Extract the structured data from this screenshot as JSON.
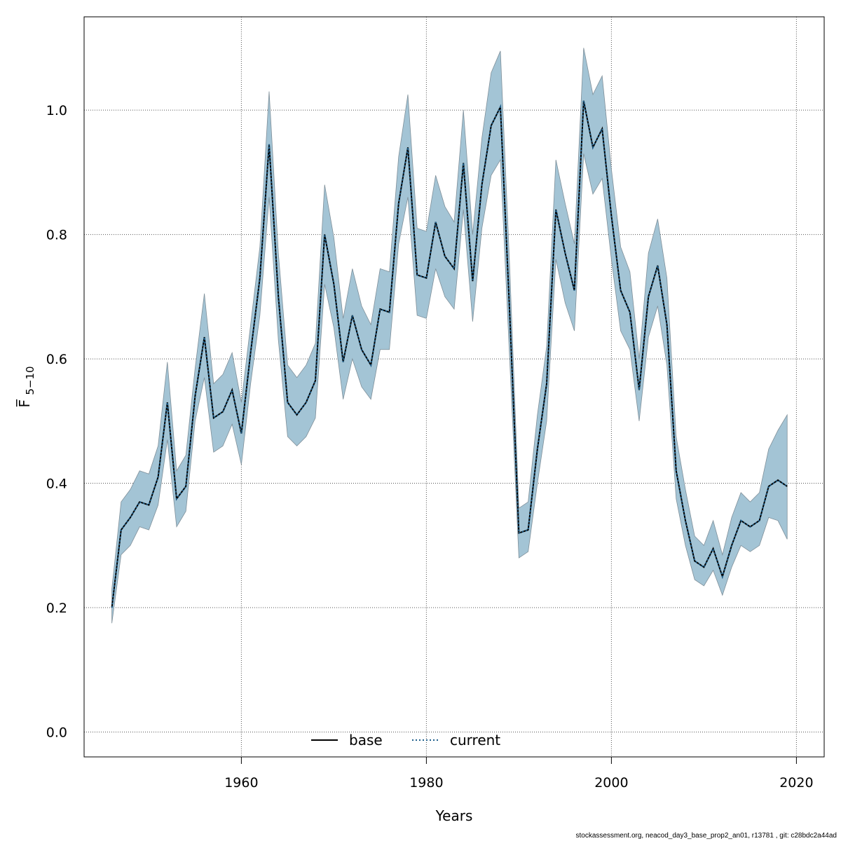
{
  "chart_data": {
    "type": "line",
    "xlabel": "Years",
    "ylabel": "F̅",
    "ylabel_subscript": "5−10",
    "xlim": [
      1943,
      2023
    ],
    "ylim": [
      -0.04,
      1.15
    ],
    "x_ticks": [
      1960,
      1980,
      2000,
      2020
    ],
    "y_ticks": [
      0.0,
      0.2,
      0.4,
      0.6,
      0.8,
      1.0
    ],
    "x_tick_labels": [
      "1960",
      "1980",
      "2000",
      "2020"
    ],
    "y_tick_labels": [
      "0.0",
      "0.2",
      "0.4",
      "0.6",
      "0.8",
      "1.0"
    ],
    "grid": true,
    "legend_position": "bottom-center",
    "band_color": "#a3c4d5",
    "band_edge_color": "#7f8f99",
    "x": [
      1946,
      1947,
      1948,
      1949,
      1950,
      1951,
      1952,
      1953,
      1954,
      1955,
      1956,
      1957,
      1958,
      1959,
      1960,
      1961,
      1962,
      1963,
      1964,
      1965,
      1966,
      1967,
      1968,
      1969,
      1970,
      1971,
      1972,
      1973,
      1974,
      1975,
      1976,
      1977,
      1978,
      1979,
      1980,
      1981,
      1982,
      1983,
      1984,
      1985,
      1986,
      1987,
      1988,
      1989,
      1990,
      1991,
      1992,
      1993,
      1994,
      1995,
      1996,
      1997,
      1998,
      1999,
      2000,
      2001,
      2002,
      2003,
      2004,
      2005,
      2006,
      2007,
      2008,
      2009,
      2010,
      2011,
      2012,
      2013,
      2014,
      2015,
      2016,
      2017,
      2018,
      2019
    ],
    "lower": [
      0.175,
      0.285,
      0.3,
      0.33,
      0.325,
      0.365,
      0.47,
      0.33,
      0.355,
      0.5,
      0.57,
      0.45,
      0.46,
      0.495,
      0.43,
      0.56,
      0.67,
      0.86,
      0.63,
      0.475,
      0.46,
      0.475,
      0.505,
      0.72,
      0.65,
      0.535,
      0.6,
      0.555,
      0.535,
      0.615,
      0.615,
      0.785,
      0.86,
      0.67,
      0.665,
      0.745,
      0.7,
      0.68,
      0.84,
      0.66,
      0.81,
      0.895,
      0.92,
      0.6,
      0.28,
      0.29,
      0.4,
      0.5,
      0.76,
      0.69,
      0.645,
      0.93,
      0.865,
      0.89,
      0.76,
      0.645,
      0.615,
      0.5,
      0.635,
      0.685,
      0.59,
      0.375,
      0.3,
      0.245,
      0.235,
      0.26,
      0.22,
      0.265,
      0.3,
      0.29,
      0.3,
      0.345,
      0.34,
      0.31
    ],
    "upper": [
      0.23,
      0.37,
      0.39,
      0.42,
      0.415,
      0.46,
      0.595,
      0.42,
      0.445,
      0.585,
      0.705,
      0.56,
      0.575,
      0.61,
      0.53,
      0.655,
      0.78,
      1.03,
      0.77,
      0.59,
      0.57,
      0.59,
      0.625,
      0.88,
      0.795,
      0.665,
      0.745,
      0.685,
      0.655,
      0.745,
      0.74,
      0.925,
      1.025,
      0.81,
      0.805,
      0.895,
      0.845,
      0.82,
      1.0,
      0.8,
      0.955,
      1.06,
      1.095,
      0.75,
      0.36,
      0.37,
      0.51,
      0.62,
      0.92,
      0.85,
      0.785,
      1.1,
      1.025,
      1.055,
      0.905,
      0.78,
      0.74,
      0.6,
      0.77,
      0.825,
      0.73,
      0.475,
      0.39,
      0.315,
      0.3,
      0.34,
      0.285,
      0.345,
      0.385,
      0.37,
      0.385,
      0.455,
      0.485,
      0.51
    ],
    "series": [
      {
        "name": "base",
        "line_style": "solid",
        "color": "#000000",
        "values": [
          0.2,
          0.325,
          0.345,
          0.37,
          0.365,
          0.41,
          0.53,
          0.375,
          0.395,
          0.54,
          0.635,
          0.505,
          0.515,
          0.55,
          0.48,
          0.61,
          0.73,
          0.945,
          0.7,
          0.53,
          0.51,
          0.53,
          0.565,
          0.8,
          0.72,
          0.595,
          0.67,
          0.615,
          0.59,
          0.68,
          0.675,
          0.85,
          0.94,
          0.735,
          0.73,
          0.82,
          0.765,
          0.745,
          0.915,
          0.725,
          0.88,
          0.975,
          1.005,
          0.675,
          0.32,
          0.325,
          0.455,
          0.56,
          0.84,
          0.77,
          0.71,
          1.015,
          0.94,
          0.97,
          0.83,
          0.71,
          0.675,
          0.55,
          0.7,
          0.75,
          0.655,
          0.42,
          0.34,
          0.275,
          0.265,
          0.295,
          0.25,
          0.3,
          0.34,
          0.33,
          0.34,
          0.395,
          0.405,
          0.395
        ]
      },
      {
        "name": "current",
        "line_style": "dotted",
        "color": "#1f5f8b",
        "values": [
          0.2,
          0.325,
          0.345,
          0.37,
          0.365,
          0.41,
          0.53,
          0.375,
          0.395,
          0.54,
          0.635,
          0.505,
          0.515,
          0.55,
          0.48,
          0.61,
          0.73,
          0.945,
          0.7,
          0.53,
          0.51,
          0.53,
          0.565,
          0.8,
          0.72,
          0.595,
          0.67,
          0.615,
          0.59,
          0.68,
          0.675,
          0.85,
          0.94,
          0.735,
          0.73,
          0.82,
          0.765,
          0.745,
          0.915,
          0.725,
          0.88,
          0.975,
          1.005,
          0.675,
          0.32,
          0.325,
          0.455,
          0.56,
          0.84,
          0.77,
          0.71,
          1.015,
          0.94,
          0.97,
          0.83,
          0.71,
          0.675,
          0.55,
          0.7,
          0.75,
          0.655,
          0.42,
          0.34,
          0.275,
          0.265,
          0.295,
          0.25,
          0.3,
          0.34,
          0.33,
          0.34,
          0.395,
          0.405,
          0.395
        ]
      }
    ]
  },
  "footer": {
    "text": "stockassessment.org, neacod_day3_base_prop2_an01, r13781 , git: c28bdc2a44ad"
  }
}
